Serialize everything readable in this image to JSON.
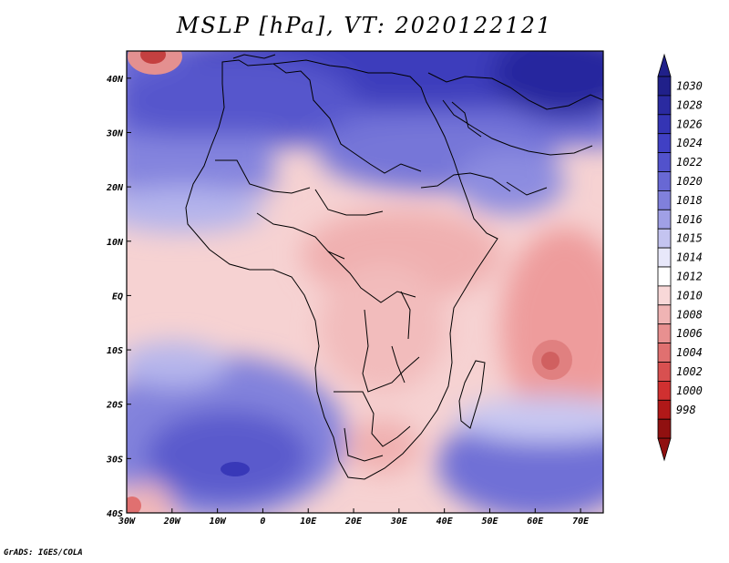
{
  "title": "MSLP [hPa], VT: 2020122121",
  "credit": "GrADS: IGES/COLA",
  "map": {
    "variable": "MSLP",
    "units": "hPa",
    "valid_time": "2020122121",
    "lon_range": [
      -30,
      75
    ],
    "lat_range": [
      -40,
      45
    ],
    "lon_ticks": [
      "30W",
      "20W",
      "10W",
      "0",
      "10E",
      "20E",
      "30E",
      "40E",
      "50E",
      "60E",
      "70E"
    ],
    "lat_ticks": [
      "40N",
      "30N",
      "20N",
      "10N",
      "EQ",
      "10S",
      "20S",
      "30S",
      "40S"
    ],
    "features": [
      {
        "name": "azores-high",
        "label": "high"
      },
      {
        "name": "south-atlantic-high",
        "label": "high"
      },
      {
        "name": "indian-ocean-low",
        "label": "low"
      },
      {
        "name": "mascarene-high",
        "label": "high"
      }
    ]
  },
  "colorbar": {
    "levels": [
      "1030",
      "1028",
      "1026",
      "1024",
      "1022",
      "1020",
      "1018",
      "1016",
      "1015",
      "1014",
      "1012",
      "1010",
      "1008",
      "1006",
      "1004",
      "1002",
      "1000",
      "998"
    ],
    "colors": [
      "#20208a",
      "#2a2aa0",
      "#3434b4",
      "#4040c4",
      "#5252cc",
      "#6868d4",
      "#8080dc",
      "#a0a0e6",
      "#c4c4f0",
      "#e8e8fa",
      "#ffffff",
      "#f8d8d8",
      "#f0b4b4",
      "#e89090",
      "#e07070",
      "#d85050",
      "#d03030",
      "#b01818",
      "#901010"
    ],
    "arrow_top_color": "#20208a",
    "arrow_bottom_color": "#901010"
  },
  "colors": {
    "land_outline": "#000000",
    "frame": "#000000"
  }
}
